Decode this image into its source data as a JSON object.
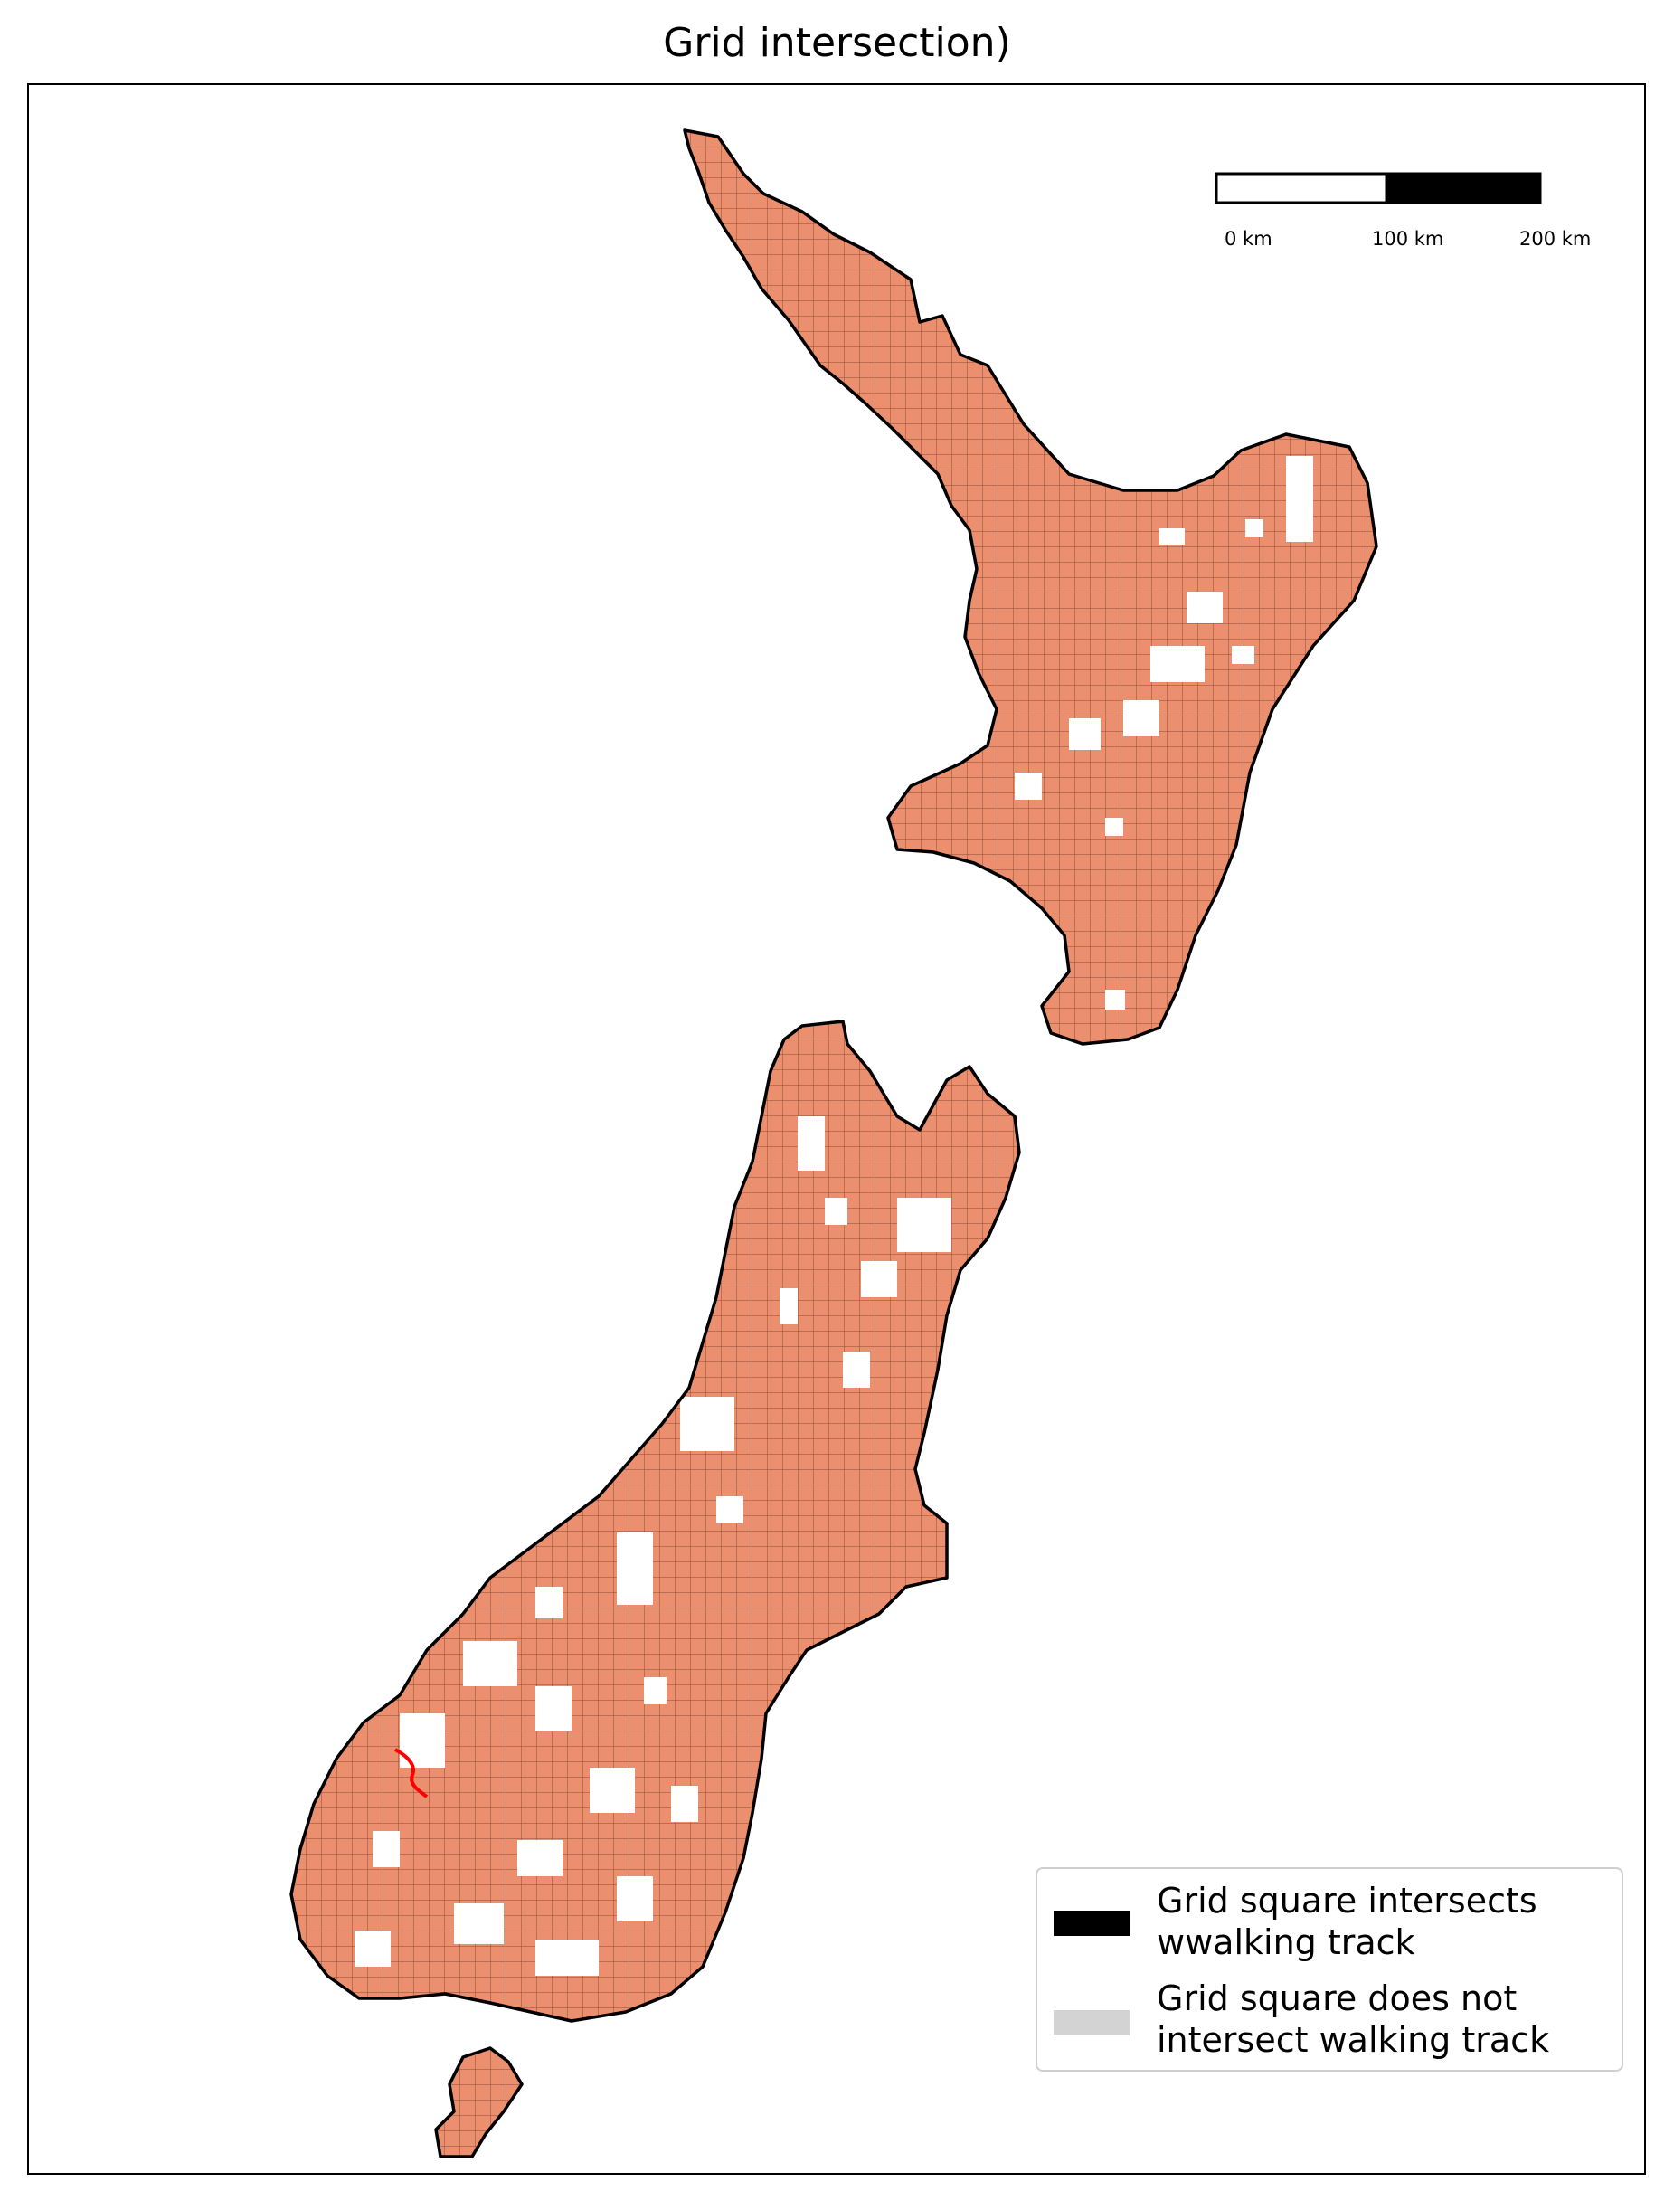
{
  "title": "Grid intersection)",
  "scale_bar": {
    "labels": [
      "0 km",
      "100 km",
      "200 km"
    ]
  },
  "legend": {
    "items": [
      {
        "label": "Grid square intersects\nwwalking track",
        "color": "#000000"
      },
      {
        "label": "Grid square does not\nintersect walking track",
        "color": "#d3d3d3"
      }
    ]
  },
  "colors": {
    "intersecting_square": "#ec8f6e",
    "grid_line": "#5a2a1a",
    "coastline": "#000000",
    "highlight_track": "#ff0000"
  }
}
